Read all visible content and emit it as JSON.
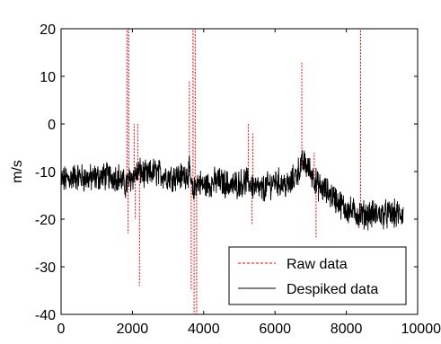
{
  "chart_data": {
    "type": "line",
    "title": "",
    "xlabel": "",
    "ylabel": "m/s",
    "xlim": [
      0,
      10000
    ],
    "ylim": [
      -40,
      20
    ],
    "xticks": [
      0,
      2000,
      4000,
      6000,
      8000,
      10000
    ],
    "yticks": [
      20,
      10,
      0,
      -10,
      -20,
      -30,
      -40
    ],
    "xtick_labels": [
      "0",
      "2000",
      "4000",
      "6000",
      "8000",
      "10000"
    ],
    "ytick_labels": [
      "20",
      "10",
      "0",
      "-10",
      "-20",
      "-30",
      "-40"
    ],
    "grid": false,
    "legend_position": "bottom-right",
    "series": [
      {
        "name": "Raw data",
        "style": "dashed",
        "color": "#ff0000",
        "spikes": [
          {
            "x": 1850,
            "y": 20
          },
          {
            "x": 1880,
            "y": -23
          },
          {
            "x": 1900,
            "y": 20
          },
          {
            "x": 2050,
            "y": 0
          },
          {
            "x": 2080,
            "y": -20
          },
          {
            "x": 2150,
            "y": 0
          },
          {
            "x": 2200,
            "y": -34
          },
          {
            "x": 3600,
            "y": 9
          },
          {
            "x": 3650,
            "y": -35
          },
          {
            "x": 3700,
            "y": 20
          },
          {
            "x": 3730,
            "y": -40
          },
          {
            "x": 3760,
            "y": 20
          },
          {
            "x": 3800,
            "y": -40
          },
          {
            "x": 5250,
            "y": 0
          },
          {
            "x": 5350,
            "y": -21
          },
          {
            "x": 5380,
            "y": -2
          },
          {
            "x": 6750,
            "y": 13
          },
          {
            "x": 7100,
            "y": -6
          },
          {
            "x": 7150,
            "y": -24
          },
          {
            "x": 8350,
            "y": -22
          },
          {
            "x": 8400,
            "y": 20
          }
        ]
      },
      {
        "name": "Despiked data",
        "style": "solid",
        "color": "#000000",
        "x": [
          0,
          400,
          800,
          1200,
          1600,
          1800,
          2000,
          2200,
          2400,
          2600,
          3000,
          3400,
          3600,
          3700,
          3800,
          4000,
          4400,
          4800,
          5200,
          5600,
          6000,
          6400,
          6800,
          7000,
          7200,
          7600,
          8000,
          8400,
          8800,
          9200,
          9600
        ],
        "y": [
          -12,
          -11,
          -11.5,
          -11,
          -11,
          -13,
          -11,
          -10,
          -11,
          -10,
          -11,
          -11,
          -10,
          -15,
          -12,
          -13,
          -12,
          -13,
          -12,
          -14,
          -12,
          -13,
          -8,
          -10,
          -13,
          -15,
          -18,
          -19,
          -19,
          -19,
          -19
        ]
      }
    ]
  }
}
